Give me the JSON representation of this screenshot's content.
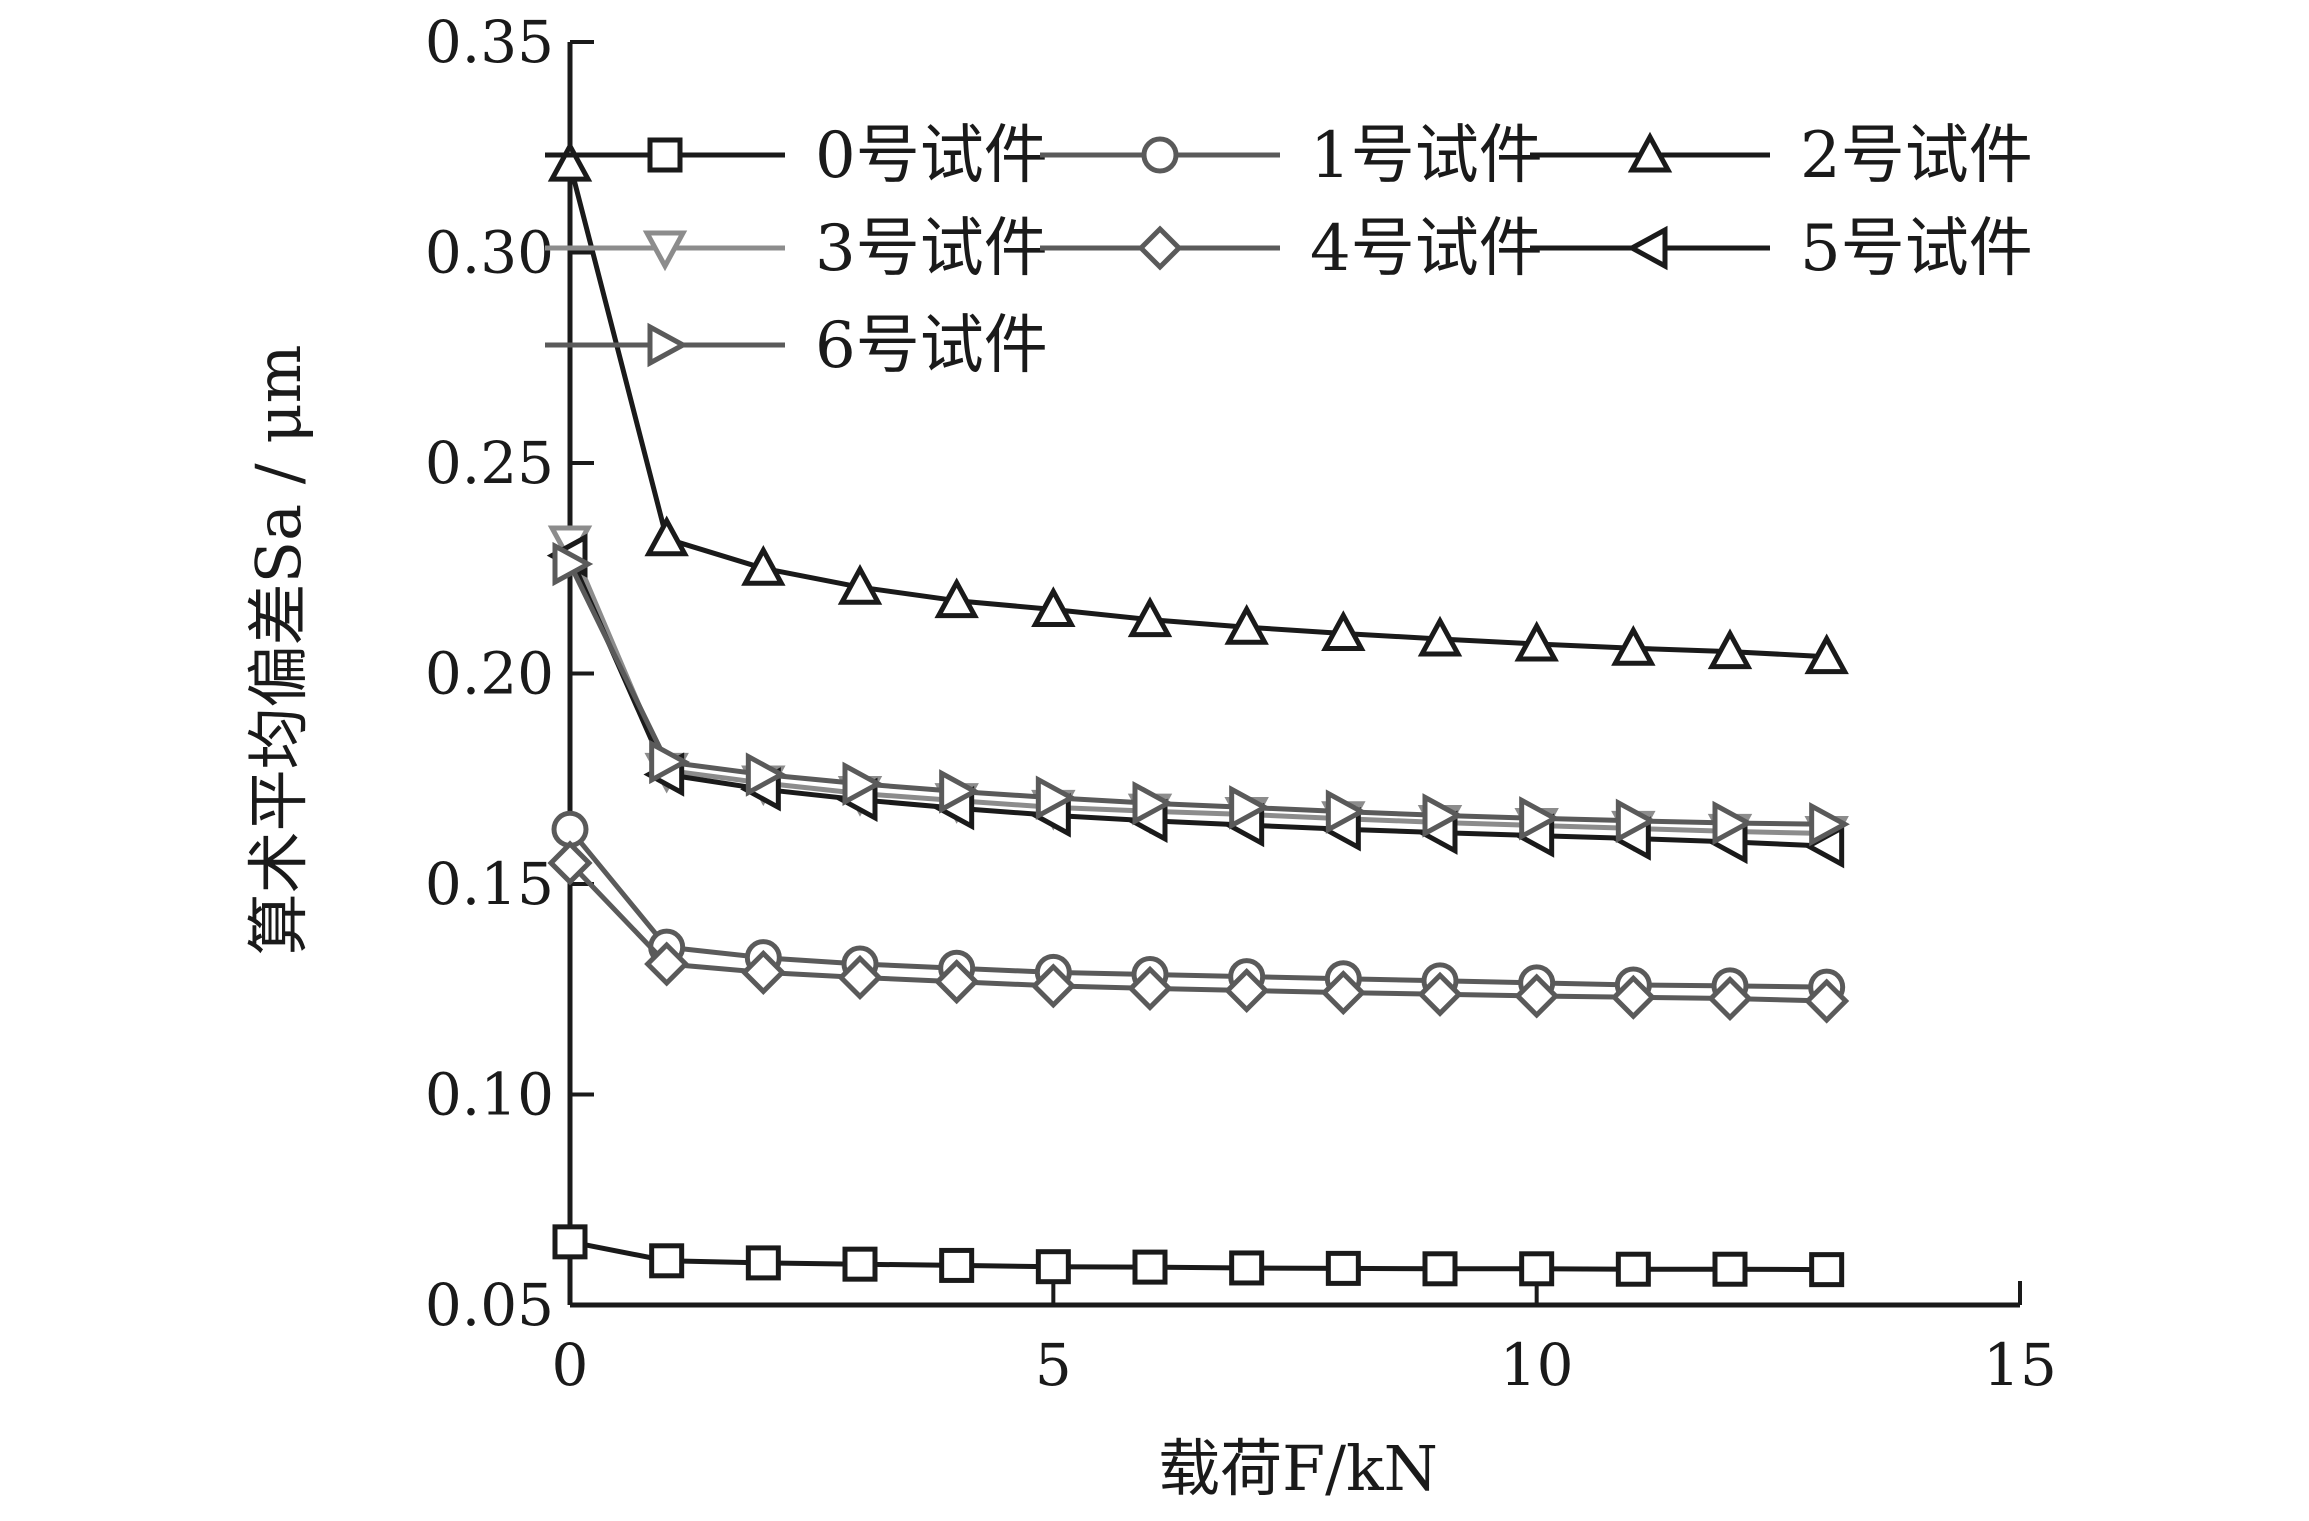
{
  "chart_data": {
    "type": "line",
    "title": "",
    "xlabel": "载荷F/kN",
    "ylabel": "算术平均偏差Sa / μm",
    "xlim": [
      0,
      15
    ],
    "ylim": [
      0.05,
      0.35
    ],
    "xticks": [
      "0",
      "5",
      "10",
      "15"
    ],
    "yticks": [
      "0.05",
      "0.10",
      "0.15",
      "0.20",
      "0.25",
      "0.30",
      "0.35"
    ],
    "grid": false,
    "legend_position": "top",
    "x": [
      0,
      1,
      2,
      3,
      4,
      5,
      6,
      7,
      8,
      9,
      10,
      11,
      12,
      13
    ],
    "series": [
      {
        "name": "0号试件",
        "marker": "square",
        "color": "#1a1a1a",
        "values": [
          0.065,
          0.0605,
          0.06,
          0.0597,
          0.0594,
          0.0591,
          0.059,
          0.0588,
          0.0587,
          0.0586,
          0.0586,
          0.0585,
          0.0585,
          0.0584
        ]
      },
      {
        "name": "1号试件",
        "marker": "circle",
        "color": "#5a5a5a",
        "values": [
          0.163,
          0.135,
          0.1325,
          0.131,
          0.13,
          0.129,
          0.1285,
          0.128,
          0.1275,
          0.127,
          0.1265,
          0.126,
          0.1258,
          0.1255
        ]
      },
      {
        "name": "2号试件",
        "marker": "triangle-up",
        "color": "#1a1a1a",
        "values": [
          0.321,
          0.232,
          0.225,
          0.2205,
          0.2173,
          0.2152,
          0.2128,
          0.211,
          0.2095,
          0.2082,
          0.207,
          0.206,
          0.2052,
          0.204
        ]
      },
      {
        "name": "3号试件",
        "marker": "triangle-down",
        "color": "#8c8c8c",
        "values": [
          0.231,
          0.177,
          0.174,
          0.1715,
          0.1698,
          0.1682,
          0.1673,
          0.1665,
          0.1655,
          0.1646,
          0.1639,
          0.1632,
          0.1625,
          0.162
        ]
      },
      {
        "name": "4号试件",
        "marker": "diamond",
        "color": "#5a5a5a",
        "values": [
          0.155,
          0.131,
          0.129,
          0.1278,
          0.1268,
          0.1258,
          0.1252,
          0.1247,
          0.1242,
          0.1238,
          0.1234,
          0.1231,
          0.1228,
          0.1222
        ]
      },
      {
        "name": "5号试件",
        "marker": "triangle-left",
        "color": "#1a1a1a",
        "values": [
          0.228,
          0.176,
          0.1725,
          0.17,
          0.168,
          0.1663,
          0.165,
          0.164,
          0.163,
          0.1622,
          0.1615,
          0.1608,
          0.16,
          0.159
        ]
      },
      {
        "name": "6号试件",
        "marker": "triangle-right",
        "color": "#5a5a5a",
        "values": [
          0.226,
          0.179,
          0.176,
          0.1738,
          0.172,
          0.1705,
          0.1692,
          0.1682,
          0.1672,
          0.1663,
          0.1656,
          0.165,
          0.1645,
          0.1642
        ]
      }
    ]
  }
}
